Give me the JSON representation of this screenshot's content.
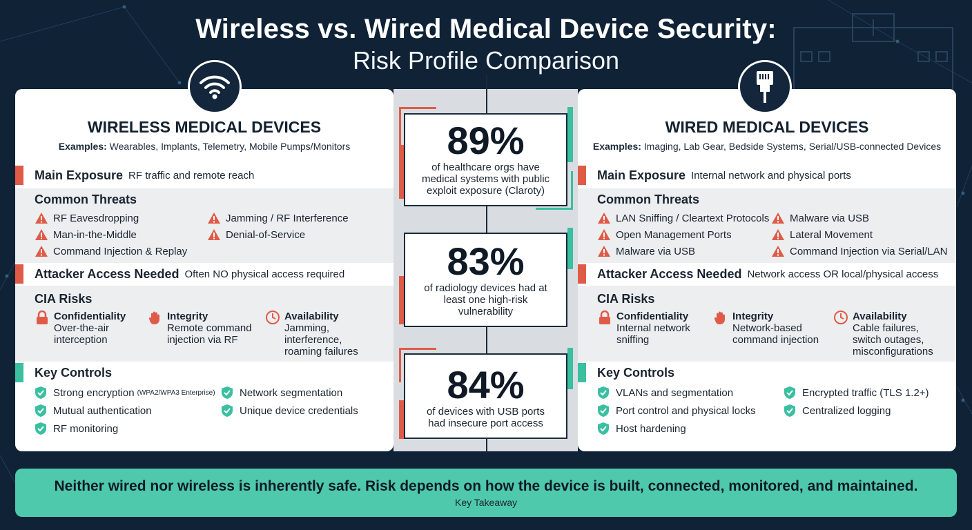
{
  "title": {
    "main": "Wireless vs. Wired Medical Device Security:",
    "sub": "Risk Profile Comparison"
  },
  "colors": {
    "background": "#0f2236",
    "red_accent": "#e05b47",
    "green_accent": "#3bbfa1",
    "takeaway": "#4fc9ac"
  },
  "wireless": {
    "icon": "wifi-icon",
    "title": "WIRELESS MEDICAL DEVICES",
    "examples_label": "Examples:",
    "examples": "Wearables, Implants, Telemetry, Mobile Pumps/Monitors",
    "exposure_label": "Main Exposure",
    "exposure_value": "RF traffic and remote reach",
    "threats_label": "Common Threats",
    "threats": [
      "RF Eavesdropping",
      "Jamming / RF Interference",
      "Man-in-the-Middle",
      "Denial-of-Service",
      "Command Injection & Replay"
    ],
    "access_label": "Attacker Access Needed",
    "access_value": "Often NO physical access required",
    "cia_label": "CIA Risks",
    "cia": [
      {
        "name": "Confidentiality",
        "desc": [
          "Over-the-air",
          "interception"
        ]
      },
      {
        "name": "Integrity",
        "desc": [
          "Remote command",
          "injection via RF"
        ]
      },
      {
        "name": "Availability",
        "desc": [
          "Jamming,",
          "interference,",
          "roaming failures"
        ]
      }
    ],
    "controls_label": "Key Controls",
    "controls": [
      "Strong encryption",
      "Network segmentation",
      "Mutual authentication",
      "Unique device credentials",
      "RF monitoring"
    ],
    "controls_note": "(WPA2/WPA3 Enterprise)"
  },
  "wired": {
    "icon": "ethernet-plug-icon",
    "title": "WIRED MEDICAL DEVICES",
    "examples_label": "Examples:",
    "examples": "Imaging, Lab Gear, Bedside Systems, Serial/USB-connected Devices",
    "exposure_label": "Main Exposure",
    "exposure_value": "Internal network and physical ports",
    "threats_label": "Common Threats",
    "threats": [
      "LAN Sniffing / Cleartext Protocols",
      "Malware via USB",
      "Open Management Ports",
      "Lateral Movement",
      "Malware via USB",
      "Command Injection via Serial/LAN"
    ],
    "access_label": "Attacker Access Needed",
    "access_value": "Network access OR local/physical access",
    "cia_label": "CIA Risks",
    "cia": [
      {
        "name": "Confidentiality",
        "desc": [
          "Internal network",
          "sniffing"
        ]
      },
      {
        "name": "Integrity",
        "desc": [
          "Network-based",
          "command injection"
        ]
      },
      {
        "name": "Availability",
        "desc": [
          "Cable failures,",
          "switch outages,",
          "misconfigurations"
        ]
      }
    ],
    "controls_label": "Key Controls",
    "controls": [
      "VLANs and segmentation",
      "Encrypted traffic (TLS 1.2+)",
      "Port control and physical locks",
      "Centralized logging",
      "Host hardening"
    ]
  },
  "stats": [
    {
      "value": "89%",
      "text": [
        "of healthcare orgs have",
        "medical systems with public",
        "exploit exposure (Claroty)"
      ]
    },
    {
      "value": "83%",
      "text": [
        "of radiology devices had at",
        "least one high-risk",
        "vulnerability"
      ]
    },
    {
      "value": "84%",
      "text": [
        "of devices with USB ports",
        "had insecure port access"
      ]
    }
  ],
  "takeaway": {
    "main": "Neither wired nor wireless is inherently safe. Risk depends on how the device is built, connected, monitored, and maintained.",
    "sub": "Key Takeaway"
  }
}
